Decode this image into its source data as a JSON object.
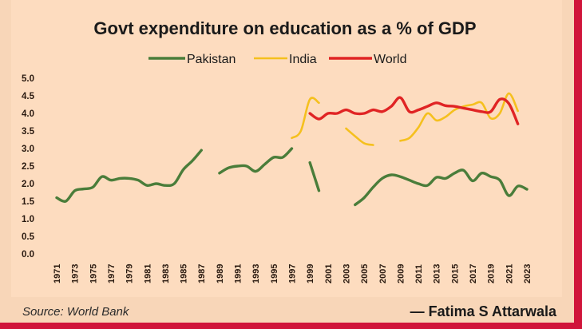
{
  "chart_data": {
    "type": "line",
    "title": "Govt expenditure on education as a % of GDP",
    "xlabel": "",
    "ylabel": "",
    "ylim": [
      0,
      5
    ],
    "xlim": [
      1971,
      2023
    ],
    "yticks": [
      "0.0",
      "0.5",
      "1.0",
      "1.5",
      "2.0",
      "2.5",
      "3.0",
      "3.5",
      "4.0",
      "4.5",
      "5.0"
    ],
    "xticks": [
      "1971",
      "1973",
      "1975",
      "1977",
      "1979",
      "1981",
      "1983",
      "1985",
      "1987",
      "1989",
      "1991",
      "1993",
      "1995",
      "1997",
      "1999",
      "2001",
      "2003",
      "2005",
      "2007",
      "2009",
      "2011",
      "2013",
      "2015",
      "2017",
      "2019",
      "2021",
      "2023"
    ],
    "grid": false,
    "legend_position": "top-center",
    "series": [
      {
        "name": "Pakistan",
        "color": "#4a7d3a",
        "segments": [
          [
            [
              1971,
              1.6
            ],
            [
              1972,
              1.5
            ],
            [
              1973,
              1.8
            ],
            [
              1974,
              1.85
            ],
            [
              1975,
              1.9
            ],
            [
              1976,
              2.2
            ],
            [
              1977,
              2.1
            ],
            [
              1978,
              2.15
            ],
            [
              1979,
              2.15
            ],
            [
              1980,
              2.1
            ],
            [
              1981,
              1.95
            ],
            [
              1982,
              2.0
            ],
            [
              1983,
              1.95
            ],
            [
              1984,
              2.0
            ],
            [
              1985,
              2.4
            ],
            [
              1986,
              2.65
            ],
            [
              1987,
              2.95
            ]
          ],
          [
            [
              1989,
              2.3
            ],
            [
              1990,
              2.45
            ],
            [
              1991,
              2.5
            ],
            [
              1992,
              2.5
            ],
            [
              1993,
              2.35
            ],
            [
              1994,
              2.55
            ],
            [
              1995,
              2.75
            ],
            [
              1996,
              2.75
            ],
            [
              1997,
              3.0
            ]
          ],
          [
            [
              1999,
              2.6
            ],
            [
              2000,
              1.8
            ]
          ],
          [
            [
              2004,
              1.4
            ],
            [
              2005,
              1.6
            ],
            [
              2006,
              1.9
            ],
            [
              2007,
              2.15
            ],
            [
              2008,
              2.25
            ],
            [
              2009,
              2.2
            ],
            [
              2010,
              2.1
            ],
            [
              2011,
              2.0
            ],
            [
              2012,
              1.95
            ],
            [
              2013,
              2.18
            ],
            [
              2014,
              2.15
            ],
            [
              2015,
              2.3
            ],
            [
              2016,
              2.38
            ],
            [
              2017,
              2.08
            ],
            [
              2018,
              2.3
            ],
            [
              2019,
              2.2
            ],
            [
              2020,
              2.1
            ],
            [
              2021,
              1.66
            ],
            [
              2022,
              1.93
            ],
            [
              2023,
              1.84
            ]
          ]
        ]
      },
      {
        "name": "India",
        "color": "#f5c01e",
        "segments": [
          [
            [
              1997,
              3.3
            ],
            [
              1998,
              3.5
            ],
            [
              1999,
              4.4
            ],
            [
              2000,
              4.3
            ]
          ],
          [
            [
              2003,
              3.57
            ],
            [
              2004,
              3.35
            ],
            [
              2005,
              3.15
            ],
            [
              2006,
              3.1
            ]
          ],
          [
            [
              2009,
              3.22
            ],
            [
              2010,
              3.3
            ],
            [
              2011,
              3.6
            ],
            [
              2012,
              4.0
            ],
            [
              2013,
              3.8
            ],
            [
              2014,
              3.9
            ],
            [
              2015,
              4.1
            ],
            [
              2016,
              4.2
            ],
            [
              2017,
              4.25
            ],
            [
              2018,
              4.3
            ],
            [
              2019,
              3.86
            ],
            [
              2020,
              4.0
            ],
            [
              2021,
              4.57
            ],
            [
              2022,
              4.07
            ]
          ]
        ]
      },
      {
        "name": "World",
        "color": "#e02424",
        "segments": [
          [
            [
              1999,
              4.0
            ],
            [
              2000,
              3.84
            ],
            [
              2001,
              4.0
            ],
            [
              2002,
              4.0
            ],
            [
              2003,
              4.1
            ],
            [
              2004,
              4.0
            ],
            [
              2005,
              4.0
            ],
            [
              2006,
              4.1
            ],
            [
              2007,
              4.05
            ],
            [
              2008,
              4.2
            ],
            [
              2009,
              4.45
            ],
            [
              2010,
              4.05
            ],
            [
              2011,
              4.1
            ],
            [
              2012,
              4.2
            ],
            [
              2013,
              4.3
            ],
            [
              2014,
              4.22
            ],
            [
              2015,
              4.2
            ],
            [
              2016,
              4.15
            ],
            [
              2017,
              4.1
            ],
            [
              2018,
              4.05
            ],
            [
              2019,
              4.05
            ],
            [
              2020,
              4.4
            ],
            [
              2021,
              4.28
            ],
            [
              2022,
              3.7
            ]
          ]
        ]
      }
    ]
  },
  "footer": {
    "source": "Source: World Bank",
    "author": "— Fatima S Attarwala"
  },
  "colors": {
    "background": "#fddcbf",
    "border": "#d0143a"
  }
}
